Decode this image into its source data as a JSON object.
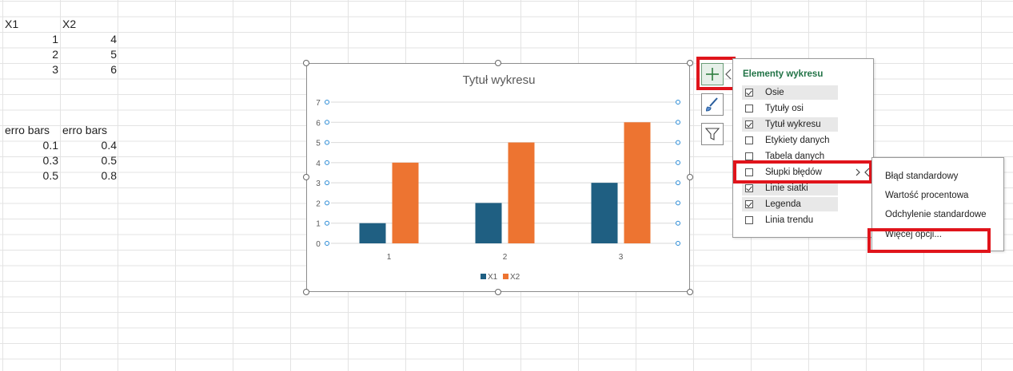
{
  "sheet": {
    "headers": [
      "X1",
      "X2"
    ],
    "rows": [
      [
        "1",
        "4"
      ],
      [
        "2",
        "5"
      ],
      [
        "3",
        "6"
      ]
    ],
    "err_headers": [
      "erro bars",
      "erro bars"
    ],
    "err_rows": [
      [
        "0.1",
        "0.4"
      ],
      [
        "0.3",
        "0.5"
      ],
      [
        "0.5",
        "0.8"
      ]
    ]
  },
  "chart_data": {
    "type": "bar",
    "title": "Tytuł wykresu",
    "categories": [
      "1",
      "2",
      "3"
    ],
    "series": [
      {
        "name": "X1",
        "values": [
          1,
          2,
          3
        ],
        "color": "#1f5f82"
      },
      {
        "name": "X2",
        "values": [
          4,
          5,
          6
        ],
        "color": "#ed7431"
      }
    ],
    "ylim": [
      0,
      7
    ],
    "yticks": [
      "0",
      "1",
      "2",
      "3",
      "4",
      "5",
      "6",
      "7"
    ],
    "grid": true,
    "legend": "bottom"
  },
  "panel": {
    "title": "Elementy wykresu",
    "items": [
      {
        "label": "Osie",
        "checked": true
      },
      {
        "label": "Tytuły osi",
        "checked": false
      },
      {
        "label": "Tytuł wykresu",
        "checked": true
      },
      {
        "label": "Etykiety danych",
        "checked": false
      },
      {
        "label": "Tabela danych",
        "checked": false
      },
      {
        "label": "Słupki błędów",
        "checked": false
      },
      {
        "label": "Linie siatki",
        "checked": true
      },
      {
        "label": "Legenda",
        "checked": true
      },
      {
        "label": "Linia trendu",
        "checked": false
      }
    ]
  },
  "submenu": {
    "items": [
      "Błąd standardowy",
      "Wartość procentowa",
      "Odchylenie standardowe",
      "Więcej opcji..."
    ]
  },
  "colors": {
    "highlight_red": "#e0141b",
    "panel_title_green": "#217346"
  },
  "icons": [
    "plus-icon",
    "brush-icon",
    "filter-icon",
    "chevron-right-icon"
  ]
}
